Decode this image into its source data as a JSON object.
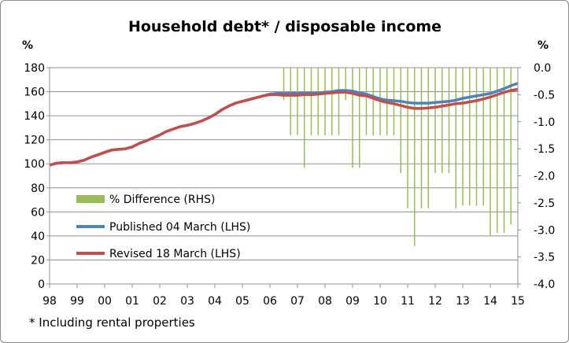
{
  "chart_data": {
    "type": "line",
    "title": "Household debt* / disposable income",
    "footnote": "* Including rental properties",
    "y_left": {
      "unit": "%",
      "range": [
        0,
        180
      ],
      "ticks": [
        "0",
        "20",
        "40",
        "60",
        "80",
        "100",
        "120",
        "140",
        "160",
        "180"
      ]
    },
    "y_right": {
      "unit": "%",
      "range": [
        -4.0,
        0.0
      ],
      "ticks": [
        "0.0",
        "-0.5",
        "-1.0",
        "-1.5",
        "-2.0",
        "-2.5",
        "-3.0",
        "-3.5",
        "-4.0"
      ]
    },
    "x_ticks": [
      "98",
      "99",
      "00",
      "01",
      "02",
      "03",
      "04",
      "05",
      "06",
      "07",
      "08",
      "09",
      "10",
      "11",
      "12",
      "13",
      "14",
      "15"
    ],
    "x_range": [
      1998.0,
      2015.0
    ],
    "grid": "horizontal",
    "legend_position": "lower-left",
    "colors": {
      "published": "#4f81bd",
      "revised": "#c0504d",
      "difference": "#9bbb59"
    },
    "series": [
      {
        "name": "% Difference (RHS)",
        "axis": "right",
        "kind": "bar",
        "x": [
          2006.5,
          2006.75,
          2007.0,
          2007.25,
          2007.5,
          2007.75,
          2008.0,
          2008.25,
          2008.5,
          2008.75,
          2009.0,
          2009.25,
          2009.5,
          2009.75,
          2010.0,
          2010.25,
          2010.5,
          2010.75,
          2011.0,
          2011.25,
          2011.5,
          2011.75,
          2012.0,
          2012.25,
          2012.5,
          2012.75,
          2013.0,
          2013.25,
          2013.5,
          2013.75,
          2014.0,
          2014.25,
          2014.5,
          2014.75
        ],
        "values": [
          -0.6,
          -1.25,
          -1.25,
          -1.85,
          -1.25,
          -1.25,
          -1.25,
          -1.25,
          -1.25,
          -0.6,
          -1.85,
          -1.85,
          -1.25,
          -1.25,
          -1.25,
          -1.25,
          -1.25,
          -1.95,
          -2.6,
          -3.3,
          -2.6,
          -2.6,
          -1.95,
          -1.95,
          -1.95,
          -2.6,
          -2.55,
          -2.55,
          -2.55,
          -2.55,
          -3.1,
          -3.05,
          -3.05,
          -2.9
        ]
      },
      {
        "name": "Published 04 March (LHS)",
        "axis": "left",
        "kind": "line",
        "x": [
          1998.0,
          1998.25,
          1998.5,
          1998.75,
          1999.0,
          1999.25,
          1999.5,
          1999.75,
          2000.0,
          2000.25,
          2000.5,
          2000.75,
          2001.0,
          2001.25,
          2001.5,
          2001.75,
          2002.0,
          2002.25,
          2002.5,
          2002.75,
          2003.0,
          2003.25,
          2003.5,
          2003.75,
          2004.0,
          2004.25,
          2004.5,
          2004.75,
          2005.0,
          2005.25,
          2005.5,
          2005.75,
          2006.0,
          2006.25,
          2006.5,
          2006.75,
          2007.0,
          2007.25,
          2007.5,
          2007.75,
          2008.0,
          2008.25,
          2008.5,
          2008.75,
          2009.0,
          2009.25,
          2009.5,
          2009.75,
          2010.0,
          2010.25,
          2010.5,
          2010.75,
          2011.0,
          2011.25,
          2011.5,
          2011.75,
          2012.0,
          2012.25,
          2012.5,
          2012.75,
          2013.0,
          2013.25,
          2013.5,
          2013.75,
          2014.0,
          2014.25,
          2014.5,
          2014.75,
          2015.0
        ],
        "values": [
          99,
          100.5,
          101,
          101,
          101.5,
          103,
          105.5,
          107.5,
          109.5,
          111.5,
          112,
          112.5,
          114,
          117,
          119,
          121.5,
          124,
          127,
          129,
          131,
          132,
          133.5,
          135.5,
          138,
          141,
          145,
          148,
          150.5,
          152,
          153.5,
          155,
          156.5,
          158,
          158.5,
          158.5,
          158.5,
          158.5,
          159,
          159,
          159,
          159.5,
          160,
          161,
          161,
          160.5,
          159,
          158,
          156,
          154,
          153,
          152.5,
          152,
          151,
          150.5,
          150.5,
          150.5,
          151,
          151.5,
          152,
          153,
          154.5,
          155.5,
          156.5,
          157.5,
          158.5,
          160.5,
          162.5,
          165,
          167
        ]
      },
      {
        "name": "Revised 18 March (LHS)",
        "axis": "left",
        "kind": "line",
        "x": [
          1998.0,
          1998.25,
          1998.5,
          1998.75,
          1999.0,
          1999.25,
          1999.5,
          1999.75,
          2000.0,
          2000.25,
          2000.5,
          2000.75,
          2001.0,
          2001.25,
          2001.5,
          2001.75,
          2002.0,
          2002.25,
          2002.5,
          2002.75,
          2003.0,
          2003.25,
          2003.5,
          2003.75,
          2004.0,
          2004.25,
          2004.5,
          2004.75,
          2005.0,
          2005.25,
          2005.5,
          2005.75,
          2006.0,
          2006.25,
          2006.5,
          2006.75,
          2007.0,
          2007.25,
          2007.5,
          2007.75,
          2008.0,
          2008.25,
          2008.5,
          2008.75,
          2009.0,
          2009.25,
          2009.5,
          2009.75,
          2010.0,
          2010.25,
          2010.5,
          2010.75,
          2011.0,
          2011.25,
          2011.5,
          2011.75,
          2012.0,
          2012.25,
          2012.5,
          2012.75,
          2013.0,
          2013.25,
          2013.5,
          2013.75,
          2014.0,
          2014.25,
          2014.5,
          2014.75,
          2015.0
        ],
        "values": [
          99,
          100.5,
          101,
          101,
          101.5,
          103,
          105.5,
          107.5,
          109.5,
          111.5,
          112,
          112.5,
          114,
          117,
          119,
          121.5,
          124,
          127,
          129,
          131,
          132,
          133.5,
          135.5,
          138,
          141,
          145,
          148,
          150.5,
          152,
          153.5,
          155,
          156.5,
          157.5,
          157.5,
          157,
          157,
          157,
          157.5,
          157.5,
          158,
          158.5,
          159,
          159.5,
          159.5,
          158.5,
          157,
          156.5,
          154.5,
          152.5,
          151,
          150,
          148.5,
          147,
          146,
          146,
          146.5,
          147,
          148,
          149,
          150,
          150.5,
          151.5,
          152.5,
          154,
          155.5,
          157.5,
          159.5,
          161,
          162
        ]
      }
    ]
  }
}
